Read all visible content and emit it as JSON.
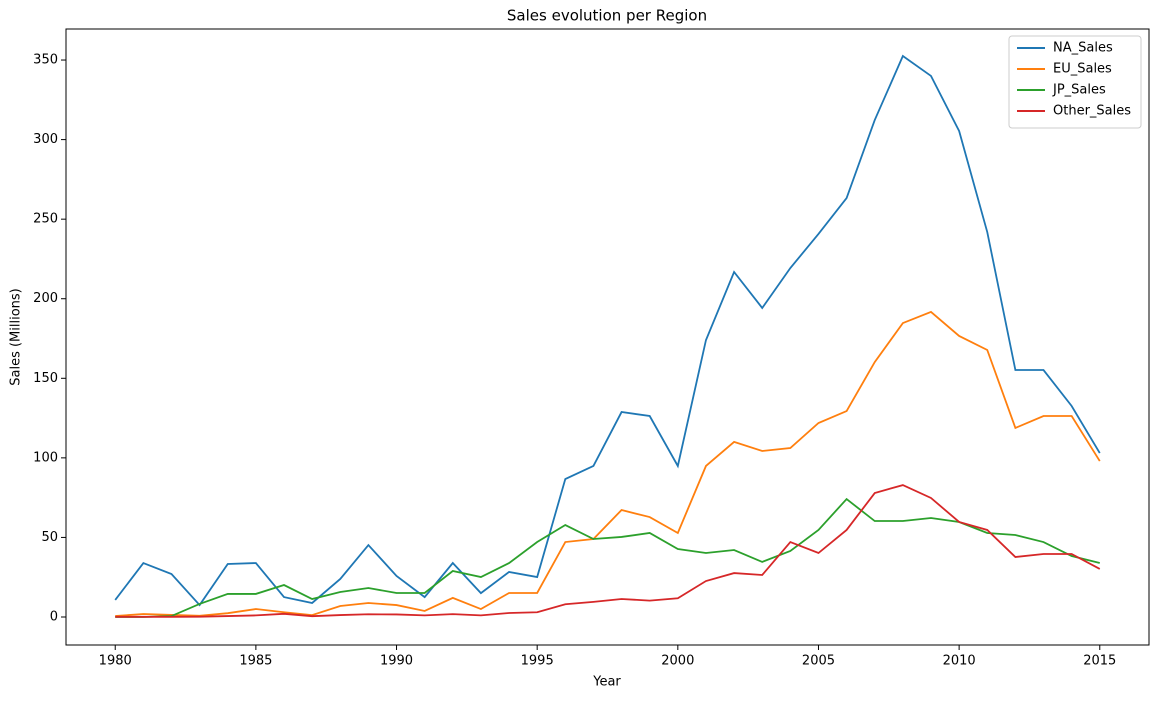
{
  "chart_data": {
    "type": "line",
    "title": "Sales evolution per Region",
    "x_label": "Year",
    "y_label": "Sales (Millions)",
    "x": [
      1980,
      1981,
      1982,
      1983,
      1984,
      1985,
      1986,
      1987,
      1988,
      1989,
      1990,
      1991,
      1992,
      1993,
      1994,
      1995,
      1996,
      1997,
      1998,
      1999,
      2000,
      2001,
      2002,
      2003,
      2004,
      2005,
      2006,
      2007,
      2008,
      2009,
      2010,
      2011,
      2012,
      2013,
      2014,
      2015
    ],
    "series": [
      {
        "name": "NA_Sales",
        "color": "#1f77b4",
        "values": [
          10.7,
          33.9,
          27,
          7.5,
          33.3,
          33.9,
          12.5,
          8.8,
          23.9,
          45.2,
          25.8,
          12.5,
          33.9,
          15,
          28.3,
          25.1,
          86.7,
          94.9,
          128.8,
          126.3,
          94.9,
          174,
          216.8,
          194.2,
          219.3,
          240.7,
          263.3,
          312.3,
          352.5,
          340,
          305.4,
          241.9,
          155.2,
          155.2,
          132.6,
          103
        ]
      },
      {
        "name": "EU_Sales",
        "color": "#ff7f0e",
        "values": [
          0.6,
          1.9,
          1.3,
          0.8,
          2.4,
          5,
          3,
          1.2,
          6.9,
          8.8,
          7.5,
          3.8,
          12,
          5,
          15.1,
          15.1,
          47.1,
          49,
          67.2,
          62.8,
          52.8,
          94.9,
          110,
          104.3,
          106.2,
          121.9,
          129.4,
          160.2,
          184.7,
          191.7,
          176.6,
          167.8,
          118.8,
          126.3,
          126.3,
          98
        ]
      },
      {
        "name": "JP_Sales",
        "color": "#2ca02c",
        "values": [
          0,
          0,
          0.6,
          8.2,
          14.5,
          14.5,
          20.1,
          11.3,
          15.7,
          18.2,
          15.1,
          15.1,
          28.9,
          25.1,
          33.9,
          47.1,
          57.8,
          49,
          50.3,
          52.8,
          42.7,
          40.2,
          42.1,
          34.6,
          41.5,
          54.7,
          74.1,
          60.3,
          60.3,
          62.2,
          59.7,
          52.8,
          51.5,
          47.1,
          38.3,
          33.9
        ]
      },
      {
        "name": "Other_Sales",
        "color": "#d62728",
        "values": [
          0.1,
          0.1,
          0.1,
          0.2,
          0.6,
          1,
          2,
          0.5,
          1.2,
          1.7,
          1.6,
          1,
          1.8,
          1,
          2.5,
          3,
          8,
          9.5,
          11.3,
          10.3,
          11.8,
          22.6,
          27.6,
          26.4,
          47.1,
          40.2,
          54.7,
          77.9,
          82.9,
          74.8,
          59.7,
          54.7,
          37.7,
          39.6,
          39.6,
          30.2
        ]
      }
    ],
    "xlim": [
      1978.25,
      2016.75
    ],
    "xticks": [
      1980,
      1985,
      1990,
      1995,
      2000,
      2005,
      2010,
      2015
    ],
    "ylim": [
      -17.6,
      369.5
    ],
    "yticks": [
      0,
      50,
      100,
      150,
      200,
      250,
      300,
      350
    ],
    "legend": "upper right"
  }
}
